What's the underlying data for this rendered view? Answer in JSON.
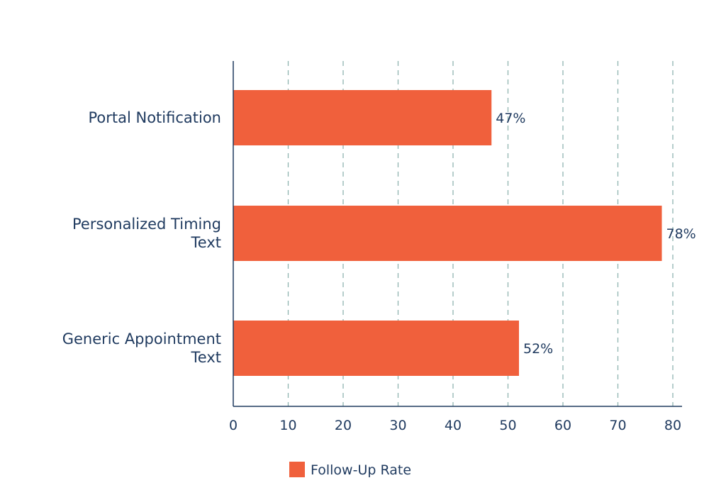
{
  "chart_data": {
    "type": "bar",
    "orientation": "horizontal",
    "categories": [
      "Portal Notification",
      "Personalized Timing Text",
      "Generic Appointment Text"
    ],
    "category_label_lines": [
      [
        "Portal Notification"
      ],
      [
        "Personalized Timing",
        "Text"
      ],
      [
        "Generic Appointment",
        "Text"
      ]
    ],
    "series": [
      {
        "name": "Follow-Up Rate",
        "values": [
          47,
          78,
          52
        ],
        "color": "#f0603c"
      }
    ],
    "data_labels": [
      "47%",
      "78%",
      "52%"
    ],
    "xlim": [
      0,
      80
    ],
    "xticks": [
      0,
      10,
      20,
      30,
      40,
      50,
      60,
      70,
      80
    ],
    "xtick_labels": [
      "0",
      "10",
      "20",
      "30",
      "40",
      "50",
      "60",
      "70",
      "80"
    ],
    "grid": "vertical dashed",
    "legend_position": "bottom-center",
    "title": "",
    "xlabel": "",
    "ylabel": ""
  },
  "colors": {
    "axis": "#1f3a5f",
    "grid": "#8fb3b0",
    "text": "#1f3a5f",
    "bar": "#f0603c"
  }
}
